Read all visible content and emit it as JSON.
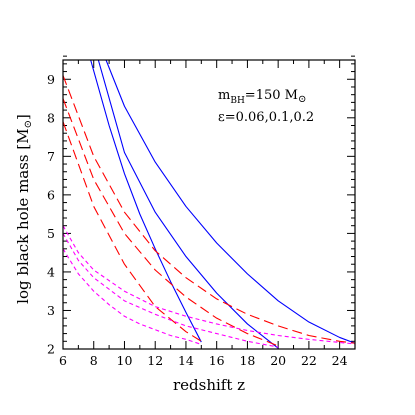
{
  "chart_data": {
    "type": "line",
    "xlabel": "redshift z",
    "ylabel": "log black hole mass [M",
    "ylabel_sub": "⊙",
    "ylabel_close": "]",
    "xlim": [
      6,
      25
    ],
    "ylim": [
      2,
      9.5
    ],
    "x_ticks": [
      6,
      8,
      10,
      12,
      14,
      16,
      18,
      20,
      22,
      24
    ],
    "y_ticks": [
      2,
      3,
      4,
      5,
      6,
      7,
      8,
      9
    ],
    "grid": false,
    "annotation": {
      "line1_base": "m",
      "line1_sub": "BH",
      "line1_rest": "=150 M",
      "line1_sun": "⊙",
      "line2": "ε=0.06,0.1,0.2"
    },
    "colors": {
      "solid": "#0000ff",
      "long_dash": "#ff0000",
      "short_dash": "#ff00ff"
    },
    "series": [
      {
        "style": "solid",
        "color": "#0000ff",
        "x": [
          7.8,
          9,
          10,
          11,
          12,
          13,
          14,
          15
        ],
        "y": [
          9.5,
          7.8,
          6.55,
          5.5,
          4.6,
          3.75,
          2.95,
          2.18
        ]
      },
      {
        "style": "solid",
        "color": "#0000ff",
        "x": [
          8.3,
          10,
          12,
          14,
          16,
          18,
          20
        ],
        "y": [
          9.5,
          7.1,
          5.55,
          4.4,
          3.45,
          2.65,
          2.02
        ]
      },
      {
        "style": "solid",
        "color": "#0000ff",
        "x": [
          8.8,
          10,
          12,
          14,
          16,
          18,
          20,
          22,
          24,
          25
        ],
        "y": [
          9.5,
          8.3,
          6.85,
          5.7,
          4.75,
          3.95,
          3.25,
          2.7,
          2.3,
          2.15
        ]
      },
      {
        "style": "long_dash",
        "color": "#ff0000",
        "x": [
          6,
          8,
          10,
          12,
          14,
          15
        ],
        "y": [
          7.9,
          5.7,
          4.2,
          3.1,
          2.45,
          2.2
        ]
      },
      {
        "style": "long_dash",
        "color": "#ff0000",
        "x": [
          6,
          8,
          10,
          12,
          14,
          16,
          18,
          20
        ],
        "y": [
          8.5,
          6.4,
          5.0,
          4.05,
          3.35,
          2.8,
          2.4,
          2.08
        ]
      },
      {
        "style": "long_dash",
        "color": "#ff0000",
        "x": [
          6,
          8,
          10,
          12,
          14,
          16,
          18,
          20,
          22,
          24,
          25
        ],
        "y": [
          9.1,
          7.0,
          5.55,
          4.55,
          3.85,
          3.3,
          2.9,
          2.6,
          2.35,
          2.2,
          2.15
        ]
      },
      {
        "style": "short_dash",
        "color": "#ff00ff",
        "x": [
          6,
          7,
          8,
          9,
          10,
          11,
          12,
          13,
          14,
          15
        ],
        "y": [
          4.6,
          3.95,
          3.5,
          3.15,
          2.85,
          2.65,
          2.5,
          2.35,
          2.25,
          2.12
        ]
      },
      {
        "style": "short_dash",
        "color": "#ff00ff",
        "x": [
          6,
          7,
          8,
          10,
          12,
          14,
          16,
          18,
          20
        ],
        "y": [
          5.0,
          4.3,
          3.85,
          3.25,
          2.9,
          2.6,
          2.4,
          2.2,
          2.05
        ]
      },
      {
        "style": "short_dash",
        "color": "#ff00ff",
        "x": [
          6,
          7,
          8,
          10,
          12,
          14,
          16,
          18,
          20,
          22,
          24,
          25
        ],
        "y": [
          5.2,
          4.5,
          4.05,
          3.5,
          3.1,
          2.85,
          2.65,
          2.48,
          2.35,
          2.25,
          2.17,
          2.13
        ]
      }
    ]
  }
}
